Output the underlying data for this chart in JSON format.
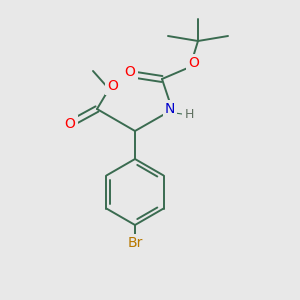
{
  "bg_color": "#e8e8e8",
  "bond_color": "#3a6b50",
  "bond_width": 1.4,
  "oxygen_color": "#ff0000",
  "nitrogen_color": "#0000cc",
  "bromine_color": "#b87800",
  "hydrogen_color": "#607060",
  "figsize": [
    3.0,
    3.0
  ],
  "dpi": 100,
  "xlim": [
    0,
    300
  ],
  "ylim": [
    0,
    300
  ]
}
